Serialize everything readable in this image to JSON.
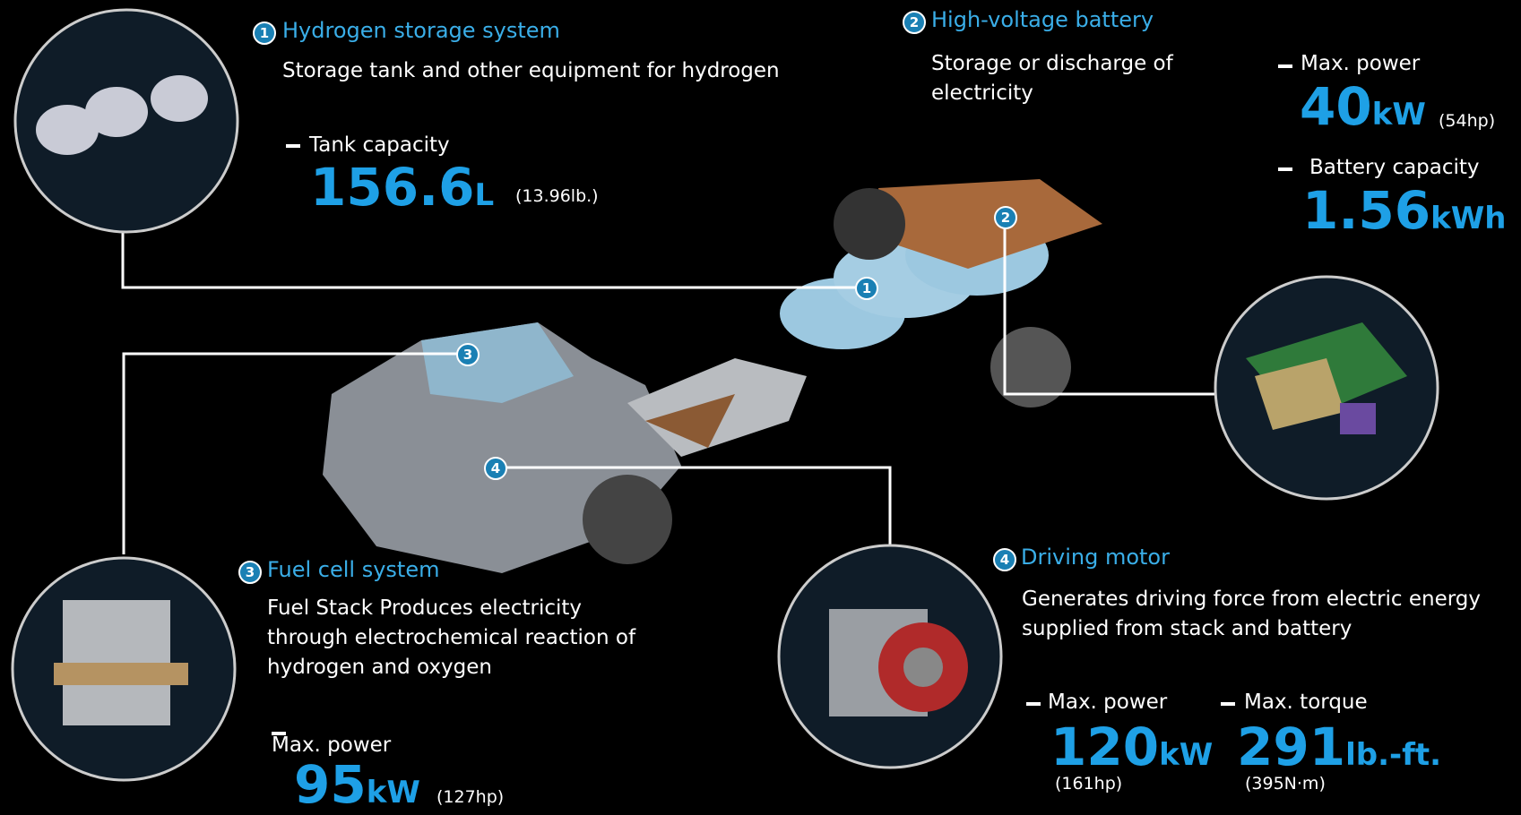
{
  "components": [
    {
      "number": "1",
      "title": "Hydrogen storage system",
      "description": [
        "Storage tank and other equipment for hydrogen"
      ],
      "specs": [
        {
          "label": "Tank capacity",
          "value": "156.6",
          "unit": "L",
          "note": "(13.96lb.)"
        }
      ]
    },
    {
      "number": "2",
      "title": "High-voltage battery",
      "description": [
        "Storage or discharge of",
        "electricity"
      ],
      "specs": [
        {
          "label": "Max. power",
          "value": "40",
          "unit": "kW",
          "note": "(54hp)"
        },
        {
          "label": "Battery capacity",
          "value": "1.56",
          "unit": "kWh"
        }
      ]
    },
    {
      "number": "3",
      "title": "Fuel cell system",
      "description": [
        "Fuel Stack Produces electricity",
        "through  electrochemical reaction of",
        "hydrogen and oxygen"
      ],
      "specs": [
        {
          "label": "Max. power",
          "value": "95",
          "unit": "kW",
          "note": "(127hp)"
        }
      ]
    },
    {
      "number": "4",
      "title": "Driving motor",
      "description": [
        "Generates driving force from electric energy",
        "supplied from stack and battery"
      ],
      "specs": [
        {
          "label": "Max. power",
          "value": "120",
          "unit": "kW",
          "note": "(161hp)"
        },
        {
          "label": "Max. torque",
          "value": "291",
          "unit": "lb.-ft.",
          "note": "(395N·m)"
        }
      ]
    }
  ]
}
